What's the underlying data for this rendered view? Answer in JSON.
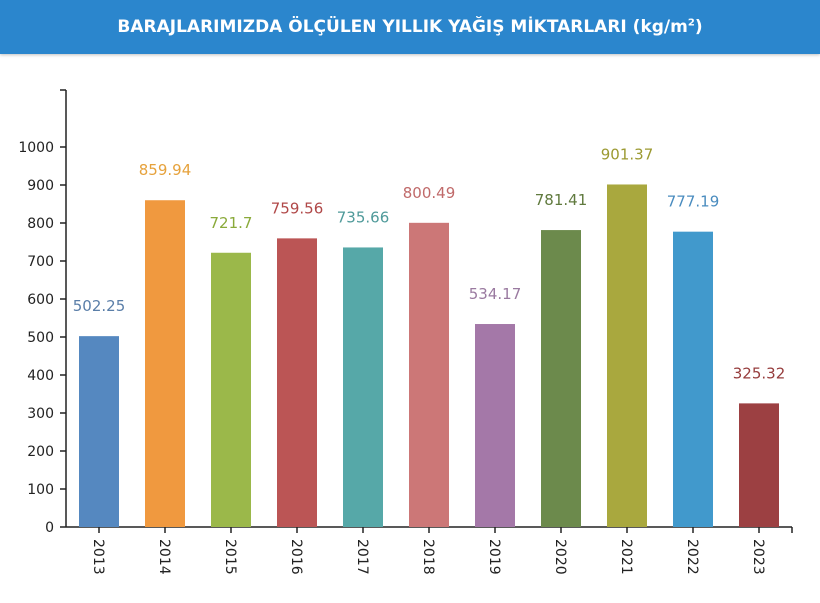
{
  "header": {
    "title_main": "BARAJLARIMIZDA ÖLÇÜLEN YILLIK YAĞIŞ MİKTARLARI (kg/m",
    "title_sup": "2",
    "title_end": ")"
  },
  "chart_data": {
    "type": "bar",
    "title": "BARAJLARIMIZDA ÖLÇÜLEN YILLIK YAĞIŞ MİKTARLARI (kg/m²)",
    "xlabel": "",
    "ylabel": "",
    "ylim": [
      0,
      1150
    ],
    "yticks": [
      0,
      100,
      200,
      300,
      400,
      500,
      600,
      700,
      800,
      900,
      1000
    ],
    "grid": false,
    "categories": [
      "2013",
      "2014",
      "2015",
      "2016",
      "2017",
      "2018",
      "2019",
      "2020",
      "2021",
      "2022",
      "2023"
    ],
    "values": [
      502.25,
      859.94,
      721.7,
      759.56,
      735.66,
      800.49,
      534.17,
      781.41,
      901.37,
      777.19,
      325.32
    ],
    "value_labels": [
      "502.25",
      "859.94",
      "721.7",
      "759.56",
      "735.66",
      "800.49",
      "534.17",
      "781.41",
      "901.37",
      "777.19",
      "325.32"
    ],
    "bar_colors": [
      "#5588c0",
      "#f0993f",
      "#9bb84a",
      "#bb5555",
      "#56a8a8",
      "#cc7777",
      "#a478a8",
      "#6c8a4c",
      "#a9a83e",
      "#4199cc",
      "#9c4042"
    ],
    "label_colors": [
      "#5a7ea8",
      "#e6a23c",
      "#8aaa3a",
      "#b04848",
      "#4f9a9a",
      "#c06a6a",
      "#9a7aa0",
      "#607a3e",
      "#9c9a32",
      "#4a8cbf",
      "#963c3c"
    ]
  }
}
